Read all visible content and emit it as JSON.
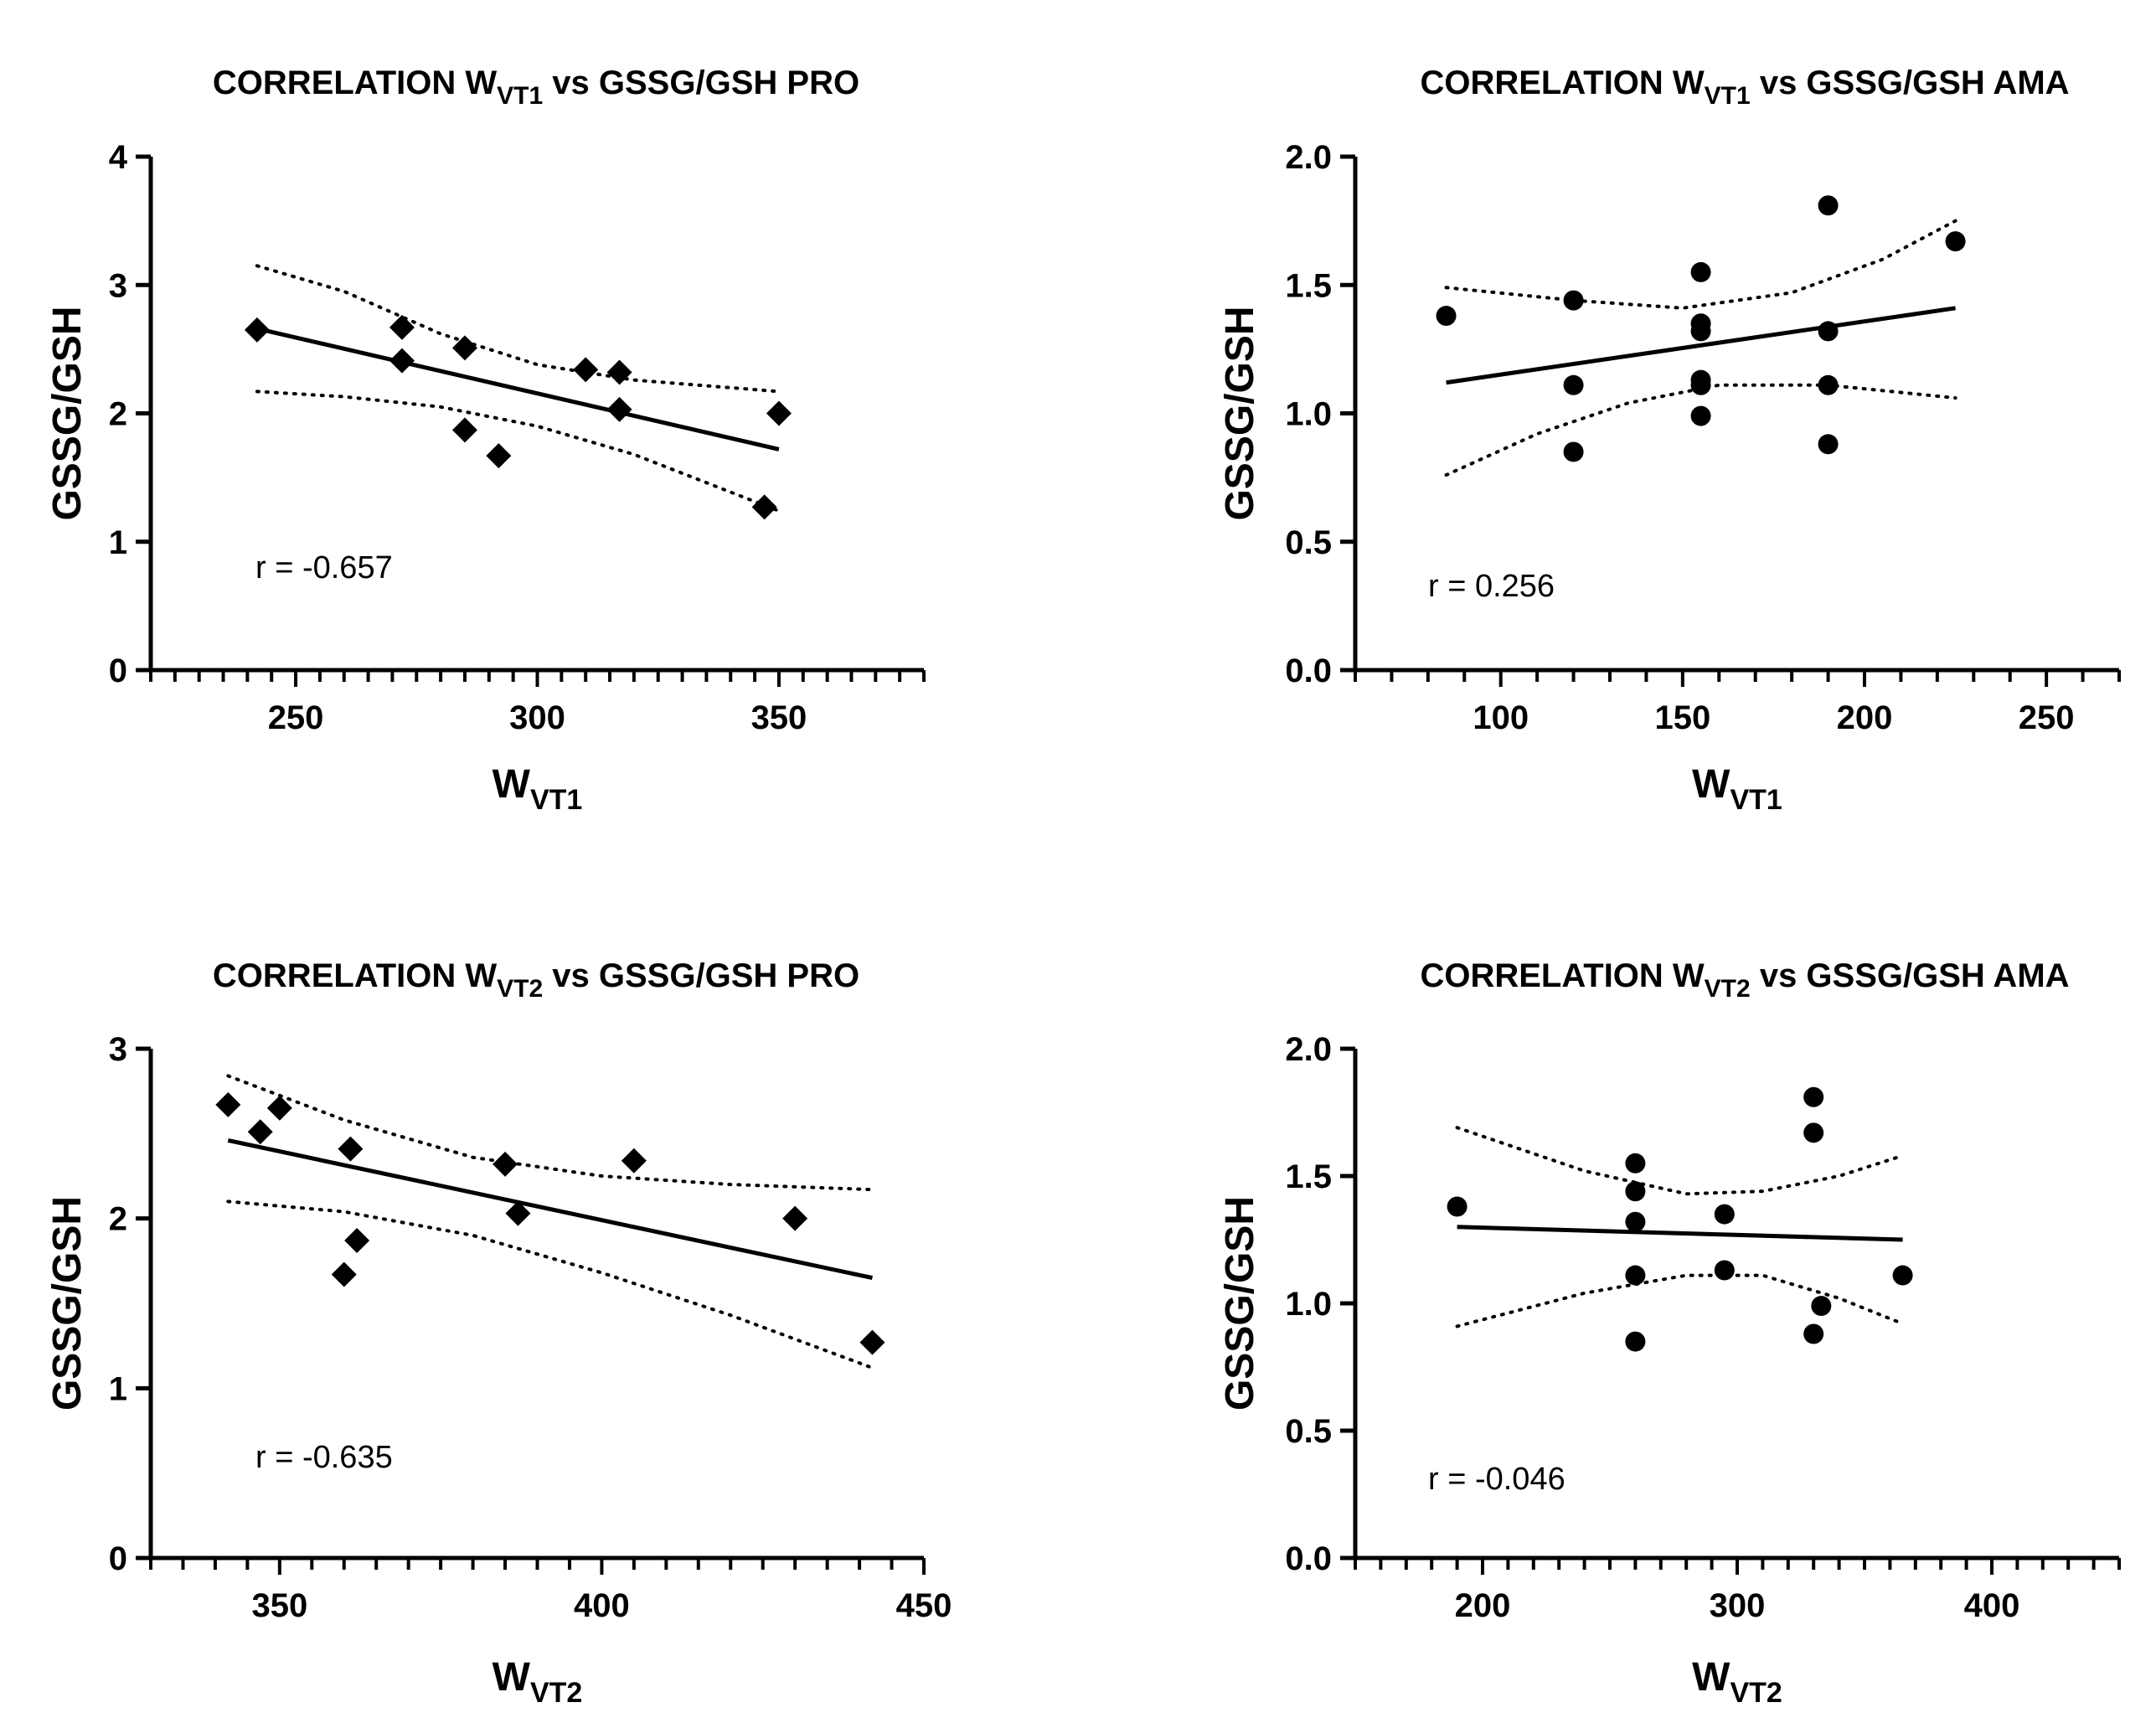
{
  "chart_data": [
    {
      "type": "scatter",
      "title": {
        "main": "CORRELATION W",
        "sub": "VT1",
        "rest": " vs GSSG/GSH PRO"
      },
      "xlabel": {
        "main": "W",
        "sub": "VT1"
      },
      "ylabel": "GSSG/GSH",
      "xlim": [
        220,
        380
      ],
      "ylim": [
        0,
        4
      ],
      "xticks": [
        "250",
        "300",
        "350"
      ],
      "xtick_values": [
        250,
        300,
        350
      ],
      "yticks": [
        "0",
        "1",
        "2",
        "3",
        "4"
      ],
      "ytick_values": [
        0,
        1,
        2,
        3,
        4
      ],
      "minor_x_step": 5,
      "marker": "diamond",
      "annotation": "r = -0.657",
      "points": [
        {
          "x": 242,
          "y": 2.65
        },
        {
          "x": 272,
          "y": 2.67
        },
        {
          "x": 272,
          "y": 2.41
        },
        {
          "x": 285,
          "y": 2.51
        },
        {
          "x": 285,
          "y": 1.87
        },
        {
          "x": 292,
          "y": 1.67
        },
        {
          "x": 310,
          "y": 2.34
        },
        {
          "x": 317,
          "y": 2.32
        },
        {
          "x": 317,
          "y": 2.03
        },
        {
          "x": 347,
          "y": 1.27
        },
        {
          "x": 350,
          "y": 2.0
        }
      ],
      "regression": [
        {
          "x": 242,
          "y": 2.66
        },
        {
          "x": 350,
          "y": 1.72
        }
      ],
      "ci_upper": [
        {
          "x": 242,
          "y": 3.15
        },
        {
          "x": 260,
          "y": 2.95
        },
        {
          "x": 280,
          "y": 2.62
        },
        {
          "x": 300,
          "y": 2.38
        },
        {
          "x": 320,
          "y": 2.26
        },
        {
          "x": 350,
          "y": 2.17
        }
      ],
      "ci_lower": [
        {
          "x": 242,
          "y": 2.17
        },
        {
          "x": 260,
          "y": 2.13
        },
        {
          "x": 280,
          "y": 2.05
        },
        {
          "x": 300,
          "y": 1.9
        },
        {
          "x": 320,
          "y": 1.68
        },
        {
          "x": 350,
          "y": 1.24
        }
      ]
    },
    {
      "type": "scatter",
      "title": {
        "main": "CORRELATION W",
        "sub": "VT1",
        "rest": " vs GSSG/GSH AMA"
      },
      "xlabel": {
        "main": "W",
        "sub": "VT1"
      },
      "ylabel": "GSSG/GSH",
      "xlim": [
        60,
        270
      ],
      "ylim": [
        0,
        2
      ],
      "xticks": [
        "100",
        "150",
        "200",
        "250"
      ],
      "xtick_values": [
        100,
        150,
        200,
        250
      ],
      "yticks": [
        "0.0",
        "0.5",
        "1.0",
        "1.5",
        "2.0"
      ],
      "ytick_values": [
        0,
        0.5,
        1.0,
        1.5,
        2.0
      ],
      "minor_x_step": 10,
      "marker": "circle",
      "annotation": "r = 0.256",
      "points": [
        {
          "x": 85,
          "y": 1.38
        },
        {
          "x": 120,
          "y": 1.44
        },
        {
          "x": 120,
          "y": 1.11
        },
        {
          "x": 120,
          "y": 0.85
        },
        {
          "x": 155,
          "y": 1.55
        },
        {
          "x": 155,
          "y": 1.35
        },
        {
          "x": 155,
          "y": 1.32
        },
        {
          "x": 155,
          "y": 1.13
        },
        {
          "x": 155,
          "y": 1.11
        },
        {
          "x": 155,
          "y": 0.99
        },
        {
          "x": 190,
          "y": 1.81
        },
        {
          "x": 190,
          "y": 1.32
        },
        {
          "x": 190,
          "y": 1.11
        },
        {
          "x": 190,
          "y": 0.88
        },
        {
          "x": 225,
          "y": 1.67
        }
      ],
      "regression": [
        {
          "x": 85,
          "y": 1.12
        },
        {
          "x": 225,
          "y": 1.41
        }
      ],
      "ci_upper": [
        {
          "x": 85,
          "y": 1.49
        },
        {
          "x": 120,
          "y": 1.44
        },
        {
          "x": 150,
          "y": 1.41
        },
        {
          "x": 180,
          "y": 1.47
        },
        {
          "x": 205,
          "y": 1.6
        },
        {
          "x": 225,
          "y": 1.75
        }
      ],
      "ci_lower": [
        {
          "x": 85,
          "y": 0.76
        },
        {
          "x": 110,
          "y": 0.92
        },
        {
          "x": 135,
          "y": 1.04
        },
        {
          "x": 160,
          "y": 1.11
        },
        {
          "x": 190,
          "y": 1.11
        },
        {
          "x": 225,
          "y": 1.06
        }
      ]
    },
    {
      "type": "scatter",
      "title": {
        "main": "CORRELATION W",
        "sub": "VT2",
        "rest": " vs GSSG/GSH PRO"
      },
      "xlabel": {
        "main": "W",
        "sub": "VT2"
      },
      "ylabel": "GSSG/GSH",
      "xlim": [
        330,
        450
      ],
      "ylim": [
        0,
        3
      ],
      "xticks": [
        "350",
        "400",
        "450"
      ],
      "xtick_values": [
        350,
        400,
        450
      ],
      "yticks": [
        "0",
        "1",
        "2",
        "3"
      ],
      "ytick_values": [
        0,
        1,
        2,
        3
      ],
      "minor_x_step": 5,
      "marker": "diamond",
      "annotation": "r = -0.635",
      "points": [
        {
          "x": 342,
          "y": 2.67
        },
        {
          "x": 347,
          "y": 2.51
        },
        {
          "x": 350,
          "y": 2.65
        },
        {
          "x": 360,
          "y": 1.67
        },
        {
          "x": 361,
          "y": 2.41
        },
        {
          "x": 362,
          "y": 1.87
        },
        {
          "x": 385,
          "y": 2.32
        },
        {
          "x": 387,
          "y": 2.03
        },
        {
          "x": 405,
          "y": 2.34
        },
        {
          "x": 430,
          "y": 2.0
        },
        {
          "x": 442,
          "y": 1.27
        }
      ],
      "regression": [
        {
          "x": 342,
          "y": 2.46
        },
        {
          "x": 442,
          "y": 1.65
        }
      ],
      "ci_upper": [
        {
          "x": 342,
          "y": 2.84
        },
        {
          "x": 360,
          "y": 2.58
        },
        {
          "x": 380,
          "y": 2.36
        },
        {
          "x": 400,
          "y": 2.25
        },
        {
          "x": 420,
          "y": 2.2
        },
        {
          "x": 442,
          "y": 2.17
        }
      ],
      "ci_lower": [
        {
          "x": 342,
          "y": 2.1
        },
        {
          "x": 360,
          "y": 2.04
        },
        {
          "x": 380,
          "y": 1.9
        },
        {
          "x": 400,
          "y": 1.68
        },
        {
          "x": 420,
          "y": 1.43
        },
        {
          "x": 442,
          "y": 1.12
        }
      ]
    },
    {
      "type": "scatter",
      "title": {
        "main": "CORRELATION W",
        "sub": "VT2",
        "rest": " vs GSSG/GSH AMA"
      },
      "xlabel": {
        "main": "W",
        "sub": "VT2"
      },
      "ylabel": "GSSG/GSH",
      "xlim": [
        150,
        450
      ],
      "ylim": [
        0,
        2
      ],
      "xticks": [
        "200",
        "300",
        "400"
      ],
      "xtick_values": [
        200,
        300,
        400
      ],
      "yticks": [
        "0.0",
        "0.5",
        "1.0",
        "1.5",
        "2.0"
      ],
      "ytick_values": [
        0,
        0.5,
        1.0,
        1.5,
        2.0
      ],
      "minor_x_step": 10,
      "marker": "circle",
      "annotation": "r = -0.046",
      "points": [
        {
          "x": 190,
          "y": 1.38
        },
        {
          "x": 260,
          "y": 1.55
        },
        {
          "x": 260,
          "y": 1.44
        },
        {
          "x": 260,
          "y": 1.32
        },
        {
          "x": 260,
          "y": 1.11
        },
        {
          "x": 260,
          "y": 0.85
        },
        {
          "x": 295,
          "y": 1.35
        },
        {
          "x": 295,
          "y": 1.13
        },
        {
          "x": 330,
          "y": 1.81
        },
        {
          "x": 330,
          "y": 1.67
        },
        {
          "x": 330,
          "y": 0.88
        },
        {
          "x": 333,
          "y": 0.99
        },
        {
          "x": 365,
          "y": 1.11
        }
      ],
      "regression": [
        {
          "x": 190,
          "y": 1.3
        },
        {
          "x": 365,
          "y": 1.25
        }
      ],
      "ci_upper": [
        {
          "x": 190,
          "y": 1.69
        },
        {
          "x": 240,
          "y": 1.52
        },
        {
          "x": 280,
          "y": 1.43
        },
        {
          "x": 310,
          "y": 1.44
        },
        {
          "x": 340,
          "y": 1.5
        },
        {
          "x": 365,
          "y": 1.58
        }
      ],
      "ci_lower": [
        {
          "x": 190,
          "y": 0.91
        },
        {
          "x": 240,
          "y": 1.04
        },
        {
          "x": 280,
          "y": 1.11
        },
        {
          "x": 310,
          "y": 1.11
        },
        {
          "x": 340,
          "y": 1.02
        },
        {
          "x": 365,
          "y": 0.92
        }
      ]
    }
  ]
}
